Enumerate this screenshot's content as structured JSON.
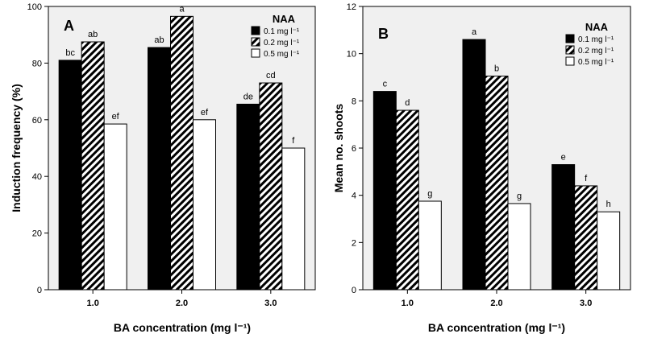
{
  "legend": {
    "title": "NAA",
    "entries": [
      "0.1 mg l⁻¹",
      "0.2 mg l⁻¹",
      "0.5 mg l⁻¹"
    ]
  },
  "series_styles": [
    {
      "fill": "#000000",
      "pattern": "solid"
    },
    {
      "fill": "#ffffff",
      "pattern": "diagonal-hatch"
    },
    {
      "fill": "#ffffff",
      "pattern": "solid"
    }
  ],
  "colors": {
    "plot_background": "#f0f0f0",
    "bar_stroke": "#000000"
  },
  "chart_data": [
    {
      "type": "bar",
      "panel": "A",
      "xlabel": "BA concentration (mg l⁻¹)",
      "ylabel": "Induction frequency (%)",
      "ylim": [
        0,
        100
      ],
      "yticks": [
        0,
        20,
        40,
        60,
        80,
        100
      ],
      "grid": false,
      "legend_position": "top-right",
      "categories": [
        "1.0",
        "2.0",
        "3.0"
      ],
      "series": [
        {
          "name": "0.1 mg l⁻¹",
          "values": [
            81,
            85.5,
            65.5
          ],
          "labels": [
            "bc",
            "ab",
            "de"
          ]
        },
        {
          "name": "0.2 mg l⁻¹",
          "values": [
            87.5,
            96.5,
            73
          ],
          "labels": [
            "ab",
            "a",
            "cd"
          ]
        },
        {
          "name": "0.5 mg l⁻¹",
          "values": [
            58.5,
            60,
            50
          ],
          "labels": [
            "ef",
            "ef",
            "f"
          ]
        }
      ]
    },
    {
      "type": "bar",
      "panel": "B",
      "xlabel": "BA concentration (mg l⁻¹)",
      "ylabel": "Mean no. shoots",
      "ylim": [
        0,
        12
      ],
      "yticks": [
        0,
        2,
        4,
        6,
        8,
        10,
        12
      ],
      "grid": false,
      "legend_position": "top-right",
      "categories": [
        "1.0",
        "2.0",
        "3.0"
      ],
      "series": [
        {
          "name": "0.1 mg l⁻¹",
          "values": [
            8.4,
            10.6,
            5.3
          ],
          "labels": [
            "c",
            "a",
            "e"
          ]
        },
        {
          "name": "0.2 mg l⁻¹",
          "values": [
            7.6,
            9.05,
            4.4
          ],
          "labels": [
            "d",
            "b",
            "f"
          ]
        },
        {
          "name": "0.5 mg l⁻¹",
          "values": [
            3.75,
            3.65,
            3.3
          ],
          "labels": [
            "g",
            "g",
            "h"
          ]
        }
      ]
    }
  ]
}
